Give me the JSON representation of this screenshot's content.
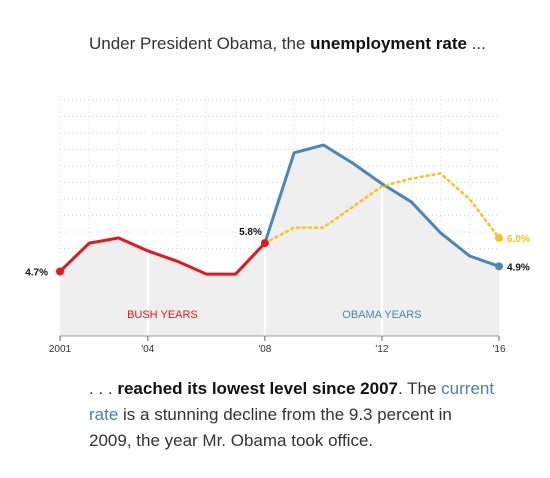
{
  "headline": {
    "prefix": "Under President Obama, the ",
    "bold": "unemployment rate",
    "suffix": " ..."
  },
  "footer": {
    "prefix": ". . . ",
    "bold": "reached its lowest level since 2007",
    "middle": ". The ",
    "link": "current rate",
    "suffix": " is a stunning decline from the 9.3 percent in 2009, the year Mr. Obama took office."
  },
  "colors": {
    "bush": "#e8161b",
    "obama": "#4a86b8",
    "projection": "#f5c518",
    "area": "#efefef"
  },
  "chart_data": {
    "type": "line",
    "x_ticks": [
      {
        "year": 2001,
        "label": "2001"
      },
      {
        "year": 2004,
        "label": "'04"
      },
      {
        "year": 2008,
        "label": "'08"
      },
      {
        "year": 2012,
        "label": "'12"
      },
      {
        "year": 2016,
        "label": "'16"
      }
    ],
    "xlim": [
      2001,
      2016
    ],
    "ylim": [
      2.2,
      11.5
    ],
    "grid": true,
    "eras": [
      {
        "label": "BUSH YEARS",
        "start": 2001,
        "end": 2008
      },
      {
        "label": "OBAMA YEARS",
        "start": 2008,
        "end": 2016
      }
    ],
    "series": [
      {
        "x": [
          2001,
          2002,
          2003,
          2004,
          2005,
          2006,
          2007,
          2008
        ],
        "y": [
          4.7,
          5.8,
          6.0,
          5.5,
          5.1,
          4.6,
          4.6,
          5.8
        ]
      },
      {
        "x": [
          2008,
          2009,
          2010,
          2011,
          2012,
          2013,
          2014,
          2015,
          2016
        ],
        "y": [
          5.8,
          9.3,
          9.6,
          8.9,
          8.1,
          7.4,
          6.2,
          5.3,
          4.9
        ]
      },
      {
        "x": [
          2008,
          2009,
          2010,
          2011,
          2012,
          2013,
          2014,
          2015,
          2016
        ],
        "y": [
          5.8,
          6.4,
          6.4,
          7.2,
          8.0,
          8.3,
          8.5,
          7.5,
          6.0
        ]
      }
    ],
    "annotations": [
      {
        "label": "4.7%",
        "x": 2001,
        "y": 4.7
      },
      {
        "label": "5.8%",
        "x": 2008,
        "y": 5.8
      },
      {
        "label": "6.0%",
        "x": 2016,
        "y": 6.0
      },
      {
        "label": "4.9%",
        "x": 2016,
        "y": 4.9
      }
    ]
  }
}
